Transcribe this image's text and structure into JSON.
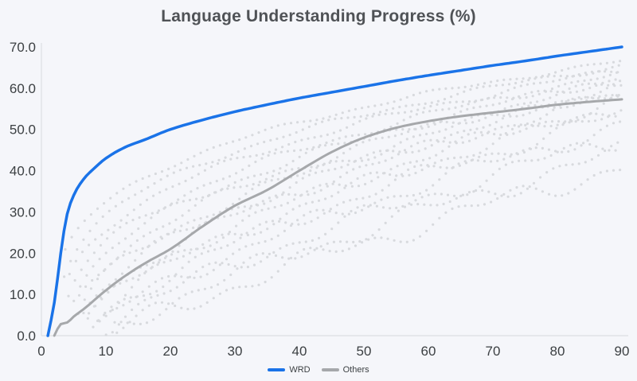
{
  "chart_data": {
    "type": "line",
    "title": "Language Understanding Progress (%)",
    "xlabel": "",
    "ylabel": "",
    "xlim": [
      0,
      90
    ],
    "ylim": [
      0,
      70
    ],
    "grid": false,
    "x_tick_labels": [
      "0",
      "10",
      "20",
      "30",
      "40",
      "50",
      "60",
      "70",
      "80",
      "90"
    ],
    "y_tick_labels": [
      "0.0",
      "10.0",
      "20.0",
      "30.0",
      "40.0",
      "50.0",
      "60.0",
      "70.0"
    ],
    "colors": {
      "background": "#f5f6fa",
      "wrd_line": "#1a73e8",
      "others_mean_line": "#a6a8ab",
      "others_dots": "#d8dade",
      "axis": "#dcdee2",
      "tick_text": "#3c4043",
      "title_text": "#4f5256"
    },
    "legend": {
      "position": "bottom-center",
      "entries": [
        {
          "label": "WRD",
          "color": "#1a73e8"
        },
        {
          "label": "Others",
          "color": "#a6a8ab"
        }
      ]
    },
    "series": [
      {
        "name": "WRD",
        "style": "solid",
        "color": "#1a73e8",
        "width": 3.5,
        "x": [
          1,
          2,
          3,
          4,
          5,
          6,
          7,
          8,
          10,
          13,
          16,
          20,
          25,
          30,
          35,
          40,
          45,
          50,
          55,
          60,
          65,
          70,
          75,
          80,
          85,
          90
        ],
        "y": [
          0,
          8,
          20,
          29.5,
          34,
          36.8,
          38.8,
          40.3,
          43,
          45.7,
          47.5,
          50,
          52.3,
          54.3,
          56,
          57.6,
          59,
          60.4,
          61.8,
          63.1,
          64.3,
          65.5,
          66.6,
          67.8,
          68.9,
          70
        ]
      },
      {
        "name": "Others",
        "style": "solid",
        "color": "#a6a8ab",
        "width": 3,
        "x": [
          2,
          3,
          4,
          5,
          7,
          10,
          13,
          16,
          20,
          25,
          30,
          35,
          40,
          45,
          50,
          55,
          60,
          65,
          70,
          75,
          80,
          85,
          90
        ],
        "y": [
          0,
          2.8,
          3.2,
          4.6,
          7,
          11,
          14.5,
          17.5,
          21,
          26.5,
          31.5,
          35.3,
          40,
          44.5,
          48,
          50.4,
          52,
          53.2,
          54.1,
          55,
          56,
          56.7,
          57.3
        ]
      }
    ],
    "others_individual": {
      "description": "Background cloud of dotted light-gray curves (one per other model). value(x) = end*((x-start)/(90-start))^shape + small wiggle",
      "style": "dotted",
      "dot_radius": 1.6,
      "x_step": 1,
      "curves": [
        {
          "end": 66.5,
          "start": 2,
          "shape": 0.3,
          "amp": 0.5,
          "seed": 0
        },
        {
          "end": 65.5,
          "start": 2.5,
          "shape": 0.33,
          "amp": 0.62,
          "seed": 2.39
        },
        {
          "end": 64.5,
          "start": 3,
          "shape": 0.36,
          "amp": 0.74,
          "seed": 4.78
        },
        {
          "end": 63.5,
          "start": 3.5,
          "shape": 0.4,
          "amp": 0.86,
          "seed": 7.17
        },
        {
          "end": 62.5,
          "start": 4,
          "shape": 0.43,
          "amp": 0.98,
          "seed": 9.56
        },
        {
          "end": 61.5,
          "start": 4.5,
          "shape": 0.46,
          "amp": 1.1,
          "seed": 11.95
        },
        {
          "end": 60.5,
          "start": 5,
          "shape": 0.5,
          "amp": 1.22,
          "seed": 14.34
        },
        {
          "end": 59.5,
          "start": 5.5,
          "shape": 0.53,
          "amp": 1.34,
          "seed": 16.73
        },
        {
          "end": 58.5,
          "start": 6,
          "shape": 0.56,
          "amp": 1.46,
          "seed": 19.12
        },
        {
          "end": 57.0,
          "start": 6.5,
          "shape": 0.6,
          "amp": 1.58,
          "seed": 21.51
        },
        {
          "end": 55.5,
          "start": 7,
          "shape": 0.63,
          "amp": 1.7,
          "seed": 23.9
        },
        {
          "end": 53.5,
          "start": 7.5,
          "shape": 0.67,
          "amp": 1.82,
          "seed": 26.29
        },
        {
          "end": 51.0,
          "start": 8,
          "shape": 0.7,
          "amp": 1.94,
          "seed": 28.68
        },
        {
          "end": 48.0,
          "start": 9,
          "shape": 0.75,
          "amp": 2.06,
          "seed": 31.07
        },
        {
          "end": 44.5,
          "start": 10,
          "shape": 0.8,
          "amp": 2.18,
          "seed": 33.46
        },
        {
          "end": 41.0,
          "start": 11,
          "shape": 0.85,
          "amp": 2.3,
          "seed": 35.85
        }
      ]
    }
  }
}
